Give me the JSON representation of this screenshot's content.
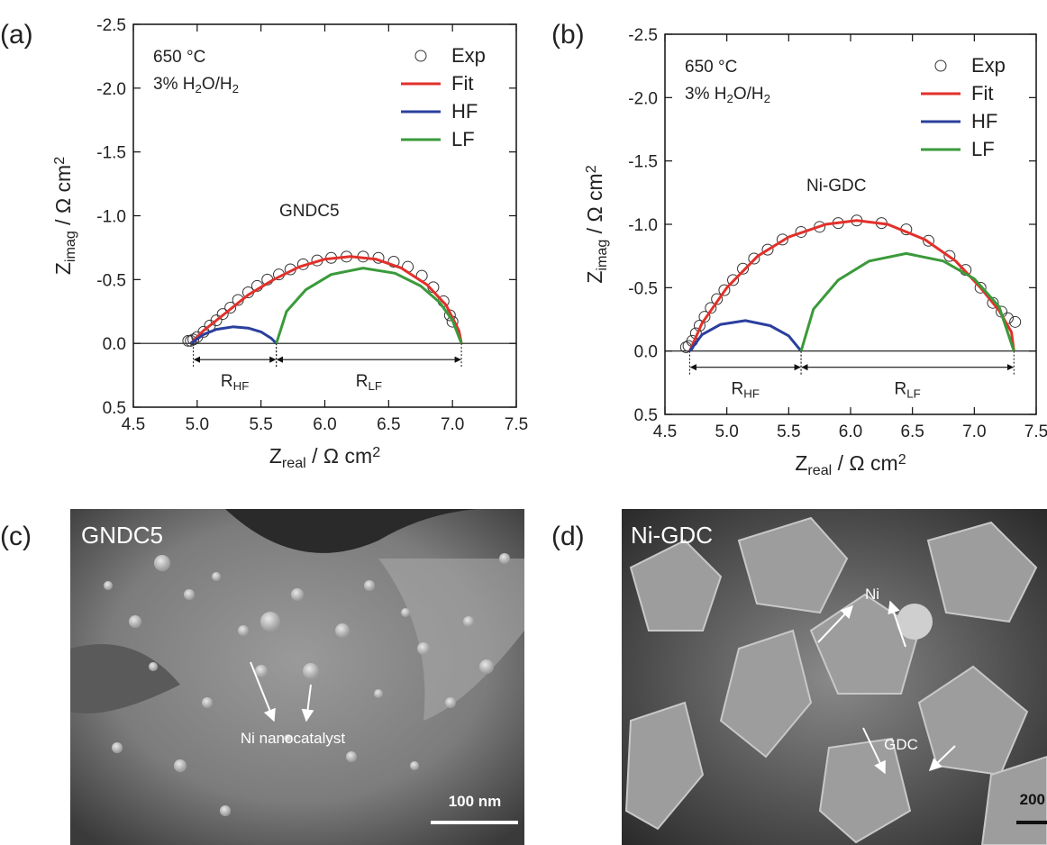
{
  "chart_data": [
    {
      "type": "nyquist",
      "label": "(a)",
      "x_label": [
        {
          "text": "Z"
        },
        {
          "sub": "real"
        },
        {
          "text": " / Ω cm"
        },
        {
          "sup": "2"
        }
      ],
      "y_label": [
        {
          "text": "Z"
        },
        {
          "sub": "imag"
        },
        {
          "text": " / Ω cm"
        },
        {
          "sup": "2"
        }
      ],
      "xlim": [
        4.5,
        7.5
      ],
      "xticks": [
        4.5,
        {
          "value": 5,
          "label": "5.0"
        },
        5.5,
        {
          "value": 6,
          "label": "6.0"
        },
        6.5,
        {
          "value": 7,
          "label": "7.0"
        },
        7.5
      ],
      "ylim": [
        0.5,
        -2.5
      ],
      "yticks": [
        {
          "value": 0.5,
          "label": "0.5"
        },
        {
          "value": 0,
          "label": "0.0"
        },
        -0.5,
        {
          "value": -1,
          "label": "-1.0"
        },
        -1.5,
        {
          "value": -2,
          "label": "-2.0"
        },
        -2.5
      ],
      "zero_line": true,
      "annotations": [
        {
          "parts": [
            {
              "text": "650 °C"
            }
          ]
        },
        {
          "parts": [
            {
              "text": "3% H"
            },
            {
              "sub": "2"
            },
            {
              "text": "O/H"
            },
            {
              "sub": "2"
            }
          ]
        },
        {
          "parts": [
            {
              "text": "GNDC5"
            }
          ]
        }
      ],
      "resistances": [
        {
          "parts": [
            {
              "text": "R"
            },
            {
              "sub": "HF"
            }
          ],
          "span": [
            4.97,
            5.62
          ]
        },
        {
          "parts": [
            {
              "text": "R"
            },
            {
              "sub": "LF"
            }
          ],
          "span": [
            5.62,
            7.07
          ]
        }
      ],
      "series": [
        {
          "name": "Exp",
          "kind": "scatter",
          "color": "#333333",
          "x": [
            4.93,
            4.95,
            4.97,
            5.0,
            5.05,
            5.1,
            5.15,
            5.2,
            5.26,
            5.32,
            5.4,
            5.47,
            5.55,
            5.64,
            5.73,
            5.83,
            5.94,
            6.05,
            6.17,
            6.3,
            6.42,
            6.54,
            6.65,
            6.76,
            6.85,
            6.93,
            6.98,
            7.0
          ],
          "values": [
            -0.02,
            -0.02,
            -0.03,
            -0.05,
            -0.09,
            -0.14,
            -0.18,
            -0.23,
            -0.28,
            -0.34,
            -0.4,
            -0.45,
            -0.5,
            -0.54,
            -0.58,
            -0.62,
            -0.65,
            -0.67,
            -0.68,
            -0.68,
            -0.67,
            -0.64,
            -0.6,
            -0.53,
            -0.44,
            -0.33,
            -0.22,
            -0.17
          ]
        },
        {
          "name": "Fit",
          "kind": "line",
          "color": "#e2302a",
          "x": [
            4.95,
            5.05,
            5.2,
            5.4,
            5.6,
            5.8,
            6.0,
            6.2,
            6.4,
            6.6,
            6.8,
            6.95,
            7.05,
            7.07
          ],
          "values": [
            0,
            -0.1,
            -0.22,
            -0.38,
            -0.5,
            -0.6,
            -0.66,
            -0.68,
            -0.66,
            -0.59,
            -0.46,
            -0.3,
            -0.1,
            0
          ]
        },
        {
          "name": "HF",
          "kind": "line",
          "color": "#2a3f9d",
          "x": [
            4.95,
            5.05,
            5.15,
            5.28,
            5.4,
            5.5,
            5.58,
            5.62
          ],
          "values": [
            0,
            -0.07,
            -0.11,
            -0.13,
            -0.12,
            -0.09,
            -0.04,
            0
          ]
        },
        {
          "name": "LF",
          "kind": "line",
          "color": "#3a9a3a",
          "x": [
            5.62,
            5.7,
            5.85,
            6.05,
            6.3,
            6.55,
            6.75,
            6.9,
            7.0,
            7.07
          ],
          "values": [
            0,
            -0.25,
            -0.42,
            -0.54,
            -0.59,
            -0.55,
            -0.45,
            -0.32,
            -0.18,
            0
          ]
        }
      ]
    },
    {
      "type": "nyquist",
      "label": "(b)",
      "x_label": [
        {
          "text": "Z"
        },
        {
          "sub": "real"
        },
        {
          "text": " / Ω cm"
        },
        {
          "sup": "2"
        }
      ],
      "y_label": [
        {
          "text": "Z"
        },
        {
          "sub": "imag"
        },
        {
          "text": " / Ω cm"
        },
        {
          "sup": "2"
        }
      ],
      "xlim": [
        4.5,
        7.5
      ],
      "xticks": [
        4.5,
        {
          "value": 5,
          "label": "5.0"
        },
        5.5,
        {
          "value": 6,
          "label": "6.0"
        },
        6.5,
        {
          "value": 7,
          "label": "7.0"
        },
        7.5
      ],
      "ylim": [
        0.5,
        -2.5
      ],
      "yticks": [
        {
          "value": 0.5,
          "label": "0.5"
        },
        {
          "value": 0,
          "label": "0.0"
        },
        -0.5,
        {
          "value": -1,
          "label": "-1.0"
        },
        -1.5,
        {
          "value": -2,
          "label": "-2.0"
        },
        -2.5
      ],
      "zero_line": true,
      "annotations": [
        {
          "parts": [
            {
              "text": "650 °C"
            }
          ]
        },
        {
          "parts": [
            {
              "text": "3% H"
            },
            {
              "sub": "2"
            },
            {
              "text": "O/H"
            },
            {
              "sub": "2"
            }
          ]
        },
        {
          "parts": [
            {
              "text": "Ni-GDC"
            }
          ]
        }
      ],
      "resistances": [
        {
          "parts": [
            {
              "text": "R"
            },
            {
              "sub": "HF"
            }
          ],
          "span": [
            4.7,
            5.6
          ]
        },
        {
          "parts": [
            {
              "text": "R"
            },
            {
              "sub": "LF"
            }
          ],
          "span": [
            5.6,
            7.32
          ]
        }
      ],
      "series": [
        {
          "name": "Exp",
          "kind": "scatter",
          "color": "#333333",
          "x": [
            4.67,
            4.69,
            4.72,
            4.75,
            4.78,
            4.82,
            4.87,
            4.92,
            4.98,
            5.05,
            5.13,
            5.22,
            5.33,
            5.45,
            5.6,
            5.75,
            5.9,
            6.05,
            6.25,
            6.45,
            6.63,
            6.8,
            6.93,
            7.05,
            7.15,
            7.22,
            7.27,
            7.33
          ],
          "values": [
            -0.03,
            -0.04,
            -0.08,
            -0.14,
            -0.2,
            -0.27,
            -0.34,
            -0.41,
            -0.48,
            -0.56,
            -0.65,
            -0.73,
            -0.8,
            -0.88,
            -0.94,
            -0.98,
            -1.01,
            -1.03,
            -1.01,
            -0.96,
            -0.87,
            -0.75,
            -0.64,
            -0.5,
            -0.38,
            -0.31,
            -0.26,
            -0.23
          ]
        },
        {
          "name": "Fit",
          "kind": "line",
          "color": "#e2302a",
          "x": [
            4.7,
            4.8,
            5.0,
            5.25,
            5.5,
            5.8,
            6.05,
            6.3,
            6.6,
            6.85,
            7.05,
            7.2,
            7.3,
            7.32
          ],
          "values": [
            0,
            -0.22,
            -0.5,
            -0.75,
            -0.9,
            -1.0,
            -1.03,
            -1.0,
            -0.88,
            -0.71,
            -0.5,
            -0.32,
            -0.15,
            0
          ]
        },
        {
          "name": "HF",
          "kind": "line",
          "color": "#2a3f9d",
          "x": [
            4.7,
            4.8,
            4.95,
            5.15,
            5.35,
            5.5,
            5.6
          ],
          "values": [
            0,
            -0.13,
            -0.21,
            -0.24,
            -0.2,
            -0.12,
            0
          ]
        },
        {
          "name": "LF",
          "kind": "line",
          "color": "#3a9a3a",
          "x": [
            5.6,
            5.7,
            5.9,
            6.15,
            6.45,
            6.75,
            7.0,
            7.2,
            7.32
          ],
          "values": [
            0,
            -0.33,
            -0.56,
            -0.71,
            -0.77,
            -0.71,
            -0.57,
            -0.35,
            0
          ]
        }
      ]
    }
  ],
  "images": [
    {
      "label": "(c)",
      "title": "GNDC5",
      "annotations": [
        "Ni nanocatalyst"
      ],
      "scale_bar": "100 nm"
    },
    {
      "label": "(d)",
      "title": "Ni-GDC",
      "annotations": [
        "Ni",
        "GDC"
      ],
      "scale_bar": "200"
    }
  ]
}
